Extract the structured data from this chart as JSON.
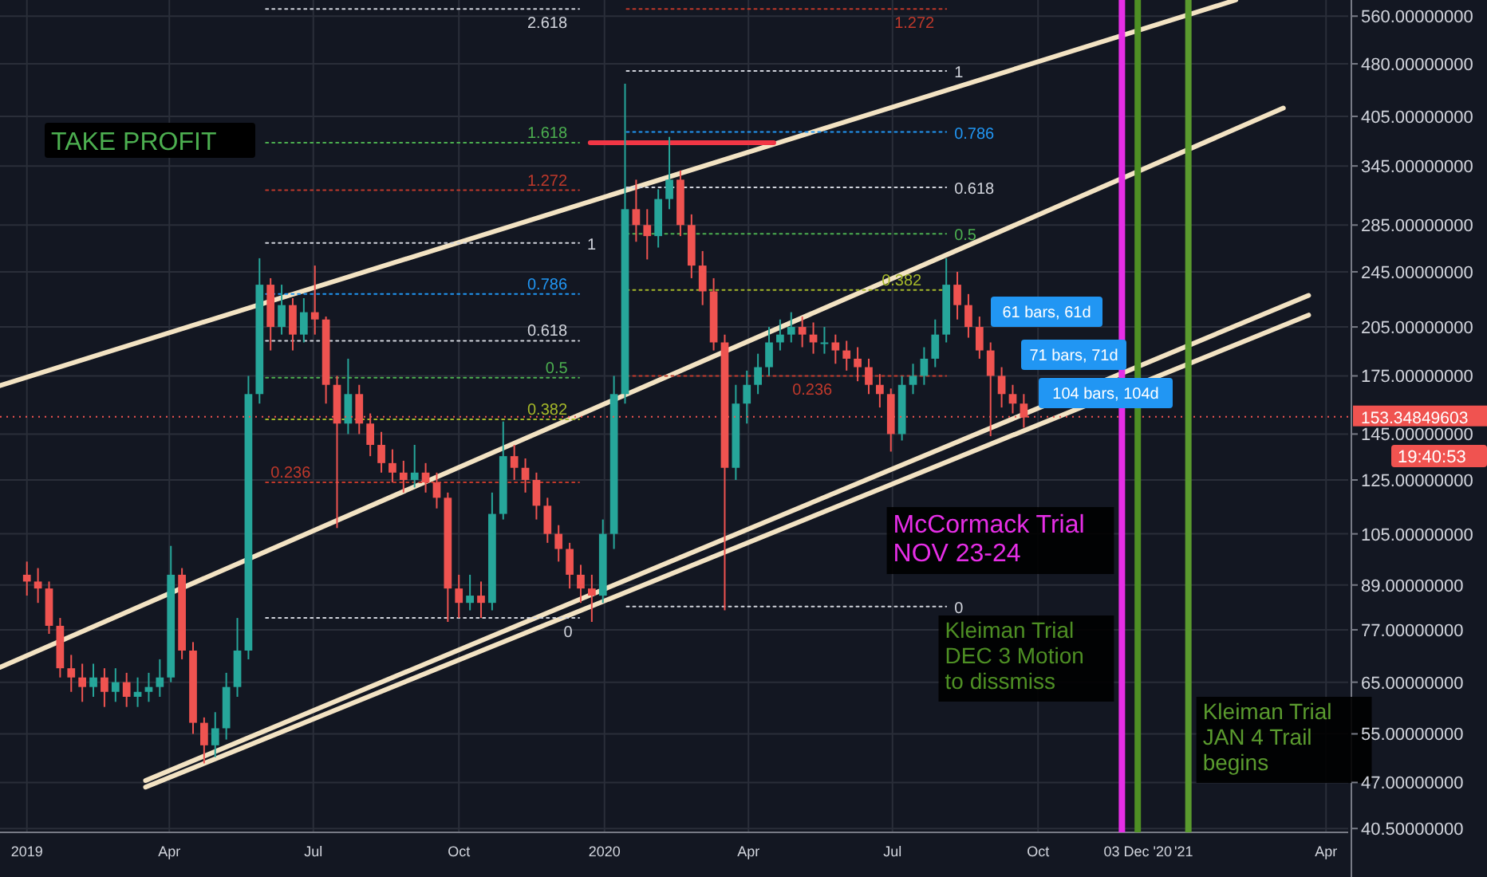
{
  "chart_data": {
    "type": "candlestick",
    "x": [
      "2019-01-01",
      "2019-01-08",
      "2019-01-15",
      "2019-01-22",
      "2019-01-29",
      "2019-02-05",
      "2019-02-12",
      "2019-02-19",
      "2019-02-26",
      "2019-03-05",
      "2019-03-12",
      "2019-03-19",
      "2019-03-26",
      "2019-04-02",
      "2019-04-09",
      "2019-04-16",
      "2019-04-23",
      "2019-04-30",
      "2019-05-07",
      "2019-05-14",
      "2019-05-21",
      "2019-05-28",
      "2019-06-04",
      "2019-06-11",
      "2019-06-18",
      "2019-06-25",
      "2019-07-02",
      "2019-07-09",
      "2019-07-16",
      "2019-07-23",
      "2019-07-30",
      "2019-08-06",
      "2019-08-13",
      "2019-08-20",
      "2019-08-27",
      "2019-09-03",
      "2019-09-10",
      "2019-09-17",
      "2019-09-24",
      "2019-10-01",
      "2019-10-08",
      "2019-10-15",
      "2019-10-22",
      "2019-10-29",
      "2019-11-05",
      "2019-11-12",
      "2019-11-19",
      "2019-11-26",
      "2019-12-03",
      "2019-12-10",
      "2019-12-17",
      "2019-12-24",
      "2019-12-31",
      "2020-01-07",
      "2020-01-14",
      "2020-01-21",
      "2020-01-28",
      "2020-02-04",
      "2020-02-11",
      "2020-02-18",
      "2020-02-25",
      "2020-03-03",
      "2020-03-10",
      "2020-03-17",
      "2020-03-24",
      "2020-03-31",
      "2020-04-07",
      "2020-04-14",
      "2020-04-21",
      "2020-04-28",
      "2020-05-05",
      "2020-05-12",
      "2020-05-19",
      "2020-05-26",
      "2020-06-02",
      "2020-06-09",
      "2020-06-16",
      "2020-06-23",
      "2020-06-30",
      "2020-07-07",
      "2020-07-14",
      "2020-07-21",
      "2020-07-28",
      "2020-08-04",
      "2020-08-11",
      "2020-08-18",
      "2020-08-25",
      "2020-09-01",
      "2020-09-08",
      "2020-09-15",
      "2020-09-22"
    ],
    "ohlc": [
      [
        92,
        96,
        86,
        90
      ],
      [
        90,
        94,
        84,
        88
      ],
      [
        88,
        90,
        76,
        78
      ],
      [
        78,
        80,
        66,
        68
      ],
      [
        68,
        71,
        63,
        66
      ],
      [
        66,
        69,
        61,
        64
      ],
      [
        64,
        69,
        62,
        66
      ],
      [
        66,
        68,
        60,
        63
      ],
      [
        63,
        68,
        61,
        65
      ],
      [
        65,
        67,
        60,
        62
      ],
      [
        62,
        66,
        60,
        63
      ],
      [
        63,
        67,
        61,
        64
      ],
      [
        64,
        70,
        62,
        66
      ],
      [
        66,
        101,
        65,
        92
      ],
      [
        92,
        94,
        70,
        72
      ],
      [
        72,
        74,
        55,
        57
      ],
      [
        57,
        58,
        50,
        53
      ],
      [
        53,
        59,
        51,
        56
      ],
      [
        56,
        67,
        54,
        64
      ],
      [
        64,
        80,
        62,
        72
      ],
      [
        72,
        175,
        70,
        165
      ],
      [
        165,
        256,
        160,
        235
      ],
      [
        235,
        240,
        190,
        205
      ],
      [
        205,
        235,
        200,
        220
      ],
      [
        220,
        225,
        190,
        200
      ],
      [
        200,
        225,
        195,
        215
      ],
      [
        215,
        250,
        200,
        210
      ],
      [
        210,
        212,
        160,
        170
      ],
      [
        170,
        175,
        107,
        150
      ],
      [
        150,
        185,
        145,
        165
      ],
      [
        165,
        170,
        145,
        150
      ],
      [
        150,
        155,
        135,
        140
      ],
      [
        140,
        146,
        128,
        132
      ],
      [
        132,
        138,
        124,
        128
      ],
      [
        128,
        133,
        120,
        125
      ],
      [
        125,
        140,
        122,
        128
      ],
      [
        128,
        132,
        120,
        124
      ],
      [
        124,
        128,
        114,
        118
      ],
      [
        118,
        120,
        79,
        88
      ],
      [
        88,
        92,
        80,
        84
      ],
      [
        84,
        92,
        82,
        86
      ],
      [
        86,
        90,
        80,
        84
      ],
      [
        84,
        120,
        82,
        112
      ],
      [
        112,
        151,
        110,
        135
      ],
      [
        135,
        140,
        125,
        130
      ],
      [
        130,
        134,
        120,
        125
      ],
      [
        125,
        128,
        110,
        115
      ],
      [
        115,
        118,
        102,
        105
      ],
      [
        105,
        108,
        96,
        100
      ],
      [
        100,
        102,
        88,
        92
      ],
      [
        92,
        95,
        84,
        88
      ],
      [
        88,
        92,
        79,
        86
      ],
      [
        86,
        110,
        84,
        105
      ],
      [
        105,
        175,
        100,
        165
      ],
      [
        165,
        450,
        160,
        300
      ],
      [
        300,
        330,
        270,
        285
      ],
      [
        285,
        300,
        255,
        275
      ],
      [
        275,
        320,
        265,
        310
      ],
      [
        310,
        379,
        300,
        330
      ],
      [
        330,
        340,
        275,
        285
      ],
      [
        285,
        295,
        240,
        250
      ],
      [
        250,
        262,
        220,
        230
      ],
      [
        230,
        240,
        190,
        195
      ],
      [
        195,
        200,
        82,
        130
      ],
      [
        130,
        170,
        125,
        160
      ],
      [
        160,
        178,
        150,
        170
      ],
      [
        170,
        188,
        165,
        180
      ],
      [
        180,
        205,
        175,
        195
      ],
      [
        195,
        210,
        190,
        200
      ],
      [
        200,
        215,
        195,
        205
      ],
      [
        205,
        212,
        192,
        200
      ],
      [
        200,
        208,
        188,
        195
      ],
      [
        195,
        205,
        188,
        195
      ],
      [
        195,
        200,
        182,
        190
      ],
      [
        190,
        196,
        178,
        185
      ],
      [
        185,
        192,
        172,
        180
      ],
      [
        180,
        185,
        165,
        170
      ],
      [
        170,
        176,
        158,
        165
      ],
      [
        165,
        168,
        137,
        145
      ],
      [
        145,
        175,
        142,
        170
      ],
      [
        170,
        182,
        165,
        175
      ],
      [
        175,
        192,
        170,
        185
      ],
      [
        185,
        210,
        180,
        200
      ],
      [
        200,
        256,
        195,
        235
      ],
      [
        235,
        245,
        210,
        220
      ],
      [
        220,
        228,
        198,
        205
      ],
      [
        205,
        212,
        185,
        190
      ],
      [
        190,
        195,
        144,
        175
      ],
      [
        175,
        180,
        158,
        165
      ],
      [
        165,
        170,
        155,
        160
      ],
      [
        160,
        165,
        148,
        153
      ]
    ],
    "series": [
      {
        "type": "line",
        "color": "#f3e3c3",
        "x": [
          "2018-12-15",
          "2021-02-03"
        ],
        "values": [
          169.6,
          590
        ]
      },
      {
        "type": "line",
        "color": "#f3e3c3",
        "x": [
          "2018-12-15",
          "2021-03-05"
        ],
        "values": [
          68.2,
          416
        ]
      },
      {
        "type": "line",
        "color": "#f3e3c3",
        "x": [
          "2019-03-17",
          "2021-03-21"
        ],
        "values": [
          47.3,
          227
        ]
      },
      {
        "type": "line",
        "color": "#f3e3c3",
        "x": [
          "2019-03-17",
          "2021-03-21"
        ],
        "values": [
          46.3,
          213
        ]
      },
      {
        "type": "line",
        "color": "#f23645",
        "x": [
          "2019-12-23",
          "2020-04-17"
        ],
        "values": [
          372,
          372
        ]
      },
      {
        "type": "line",
        "name": "2.618",
        "color": "#d1d4dc",
        "line_style": "dotted",
        "x": [
          "2019-06-01",
          "2019-12-16"
        ],
        "values": [
          573,
          573
        ]
      },
      {
        "type": "line",
        "name": "1.618",
        "color": "#4caf50",
        "line_style": "dotted",
        "x": [
          "2019-06-01",
          "2019-12-16"
        ],
        "values": [
          372,
          372
        ]
      },
      {
        "type": "line",
        "name": "1.272",
        "color": "#c0392b",
        "line_style": "dotted",
        "x": [
          "2019-06-01",
          "2019-12-16"
        ],
        "values": [
          319,
          319
        ]
      },
      {
        "type": "line",
        "name": "1",
        "color": "#d1d4dc",
        "line_style": "dotted",
        "x": [
          "2019-06-01",
          "2019-12-16"
        ],
        "values": [
          269,
          269
        ]
      },
      {
        "type": "line",
        "name": "0.786",
        "color": "#2196f3",
        "line_style": "dotted",
        "x": [
          "2019-06-01",
          "2019-12-16"
        ],
        "values": [
          228,
          228
        ]
      },
      {
        "type": "line",
        "name": "0.618",
        "color": "#d1d4dc",
        "line_style": "dotted",
        "x": [
          "2019-06-01",
          "2019-12-16"
        ],
        "values": [
          196,
          196
        ]
      },
      {
        "type": "line",
        "name": "0.5",
        "color": "#4caf50",
        "line_style": "dotted",
        "x": [
          "2019-06-01",
          "2019-12-16"
        ],
        "values": [
          174,
          174
        ]
      },
      {
        "type": "line",
        "name": "0.382",
        "color": "#a5b82a",
        "line_style": "dotted",
        "x": [
          "2019-06-01",
          "2019-12-16"
        ],
        "values": [
          152,
          152
        ]
      },
      {
        "type": "line",
        "name": "0.236",
        "color": "#c0392b",
        "line_style": "dotted",
        "x": [
          "2019-06-01",
          "2019-12-16"
        ],
        "values": [
          124,
          124
        ]
      },
      {
        "type": "line",
        "name": "0",
        "color": "#d1d4dc",
        "line_style": "dotted",
        "x": [
          "2019-06-01",
          "2019-12-16"
        ],
        "values": [
          80,
          80
        ]
      },
      {
        "type": "line",
        "name": "1.272",
        "color": "#c0392b",
        "line_style": "dotted",
        "x": [
          "2020-01-15",
          "2020-08-04"
        ],
        "values": [
          573,
          573
        ]
      },
      {
        "type": "line",
        "name": "1",
        "color": "#d1d4dc",
        "line_style": "dotted",
        "x": [
          "2020-01-15",
          "2020-08-04"
        ],
        "values": [
          469,
          469
        ]
      },
      {
        "type": "line",
        "name": "0.786",
        "color": "#2196f3",
        "line_style": "dotted",
        "x": [
          "2020-01-15",
          "2020-08-04"
        ],
        "values": [
          385,
          385
        ]
      },
      {
        "type": "line",
        "name": "0.618",
        "color": "#d1d4dc",
        "line_style": "dotted",
        "x": [
          "2020-01-15",
          "2020-08-04"
        ],
        "values": [
          322,
          322
        ]
      },
      {
        "type": "line",
        "name": "0.5",
        "color": "#4caf50",
        "line_style": "dotted",
        "x": [
          "2020-01-15",
          "2020-08-04"
        ],
        "values": [
          277,
          277
        ]
      },
      {
        "type": "line",
        "name": "0.382",
        "color": "#a5b82a",
        "line_style": "dotted",
        "x": [
          "2020-01-15",
          "2020-08-04"
        ],
        "values": [
          231,
          231
        ]
      },
      {
        "type": "line",
        "name": "0.236",
        "color": "#c0392b",
        "line_style": "dotted",
        "x": [
          "2020-01-15",
          "2020-08-04"
        ],
        "values": [
          175,
          175
        ]
      },
      {
        "type": "line",
        "name": "0",
        "color": "#d1d4dc",
        "line_style": "dotted",
        "x": [
          "2020-01-15",
          "2020-08-04"
        ],
        "values": [
          83,
          83
        ]
      }
    ],
    "xlim": [
      "2018-12-15",
      "2021-04-15"
    ],
    "ylim": [
      40,
      590
    ],
    "log": "y",
    "grid": true,
    "xticks": [
      {
        "value": "2019-01-01",
        "label": "2019"
      },
      {
        "value": "2019-04-01",
        "label": "Apr"
      },
      {
        "value": "2019-07-01",
        "label": "Jul"
      },
      {
        "value": "2019-10-01",
        "label": "Oct"
      },
      {
        "value": "2020-01-01",
        "label": "2020"
      },
      {
        "value": "2020-04-01",
        "label": "Apr"
      },
      {
        "value": "2020-07-01",
        "label": "Jul"
      },
      {
        "value": "2020-10-01",
        "label": "Oct"
      },
      {
        "value": "2020-12-03",
        "label": "03 Dec '20"
      },
      {
        "value": "2021-01-01",
        "label": "'21"
      },
      {
        "value": "2021-04-01",
        "label": "Apr"
      }
    ],
    "yticks": [
      {
        "value": 40.5,
        "label": "40.50000000"
      },
      {
        "value": 47,
        "label": "47.00000000"
      },
      {
        "value": 55,
        "label": "55.00000000"
      },
      {
        "value": 65,
        "label": "65.00000000"
      },
      {
        "value": 77,
        "label": "77.00000000"
      },
      {
        "value": 89,
        "label": "89.00000000"
      },
      {
        "value": 105,
        "label": "105.00000000"
      },
      {
        "value": 125,
        "label": "125.00000000"
      },
      {
        "value": 145,
        "label": "145.00000000"
      },
      {
        "value": 175,
        "label": "175.00000000"
      },
      {
        "value": 205,
        "label": "205.00000000"
      },
      {
        "value": 245,
        "label": "245.00000000"
      },
      {
        "value": 285,
        "label": "285.00000000"
      },
      {
        "value": 345,
        "label": "345.00000000"
      },
      {
        "value": 405,
        "label": "405.00000000"
      },
      {
        "value": 480,
        "label": "480.00000000"
      },
      {
        "value": 560,
        "label": "560.00000000"
      }
    ],
    "ref_lines": [
      {
        "axis": "y",
        "value": 153.34849603,
        "label": "153.34849603",
        "color": "#f05350",
        "line_style": "dotted"
      },
      {
        "axis": "x",
        "value": "2020-11-23",
        "label": "McCormack Trial\nNOV 23-24",
        "color": "#e62ee6"
      },
      {
        "axis": "x",
        "value": "2020-12-03",
        "label": "Kleiman Trial\nDEC 3 Motion\nto dissmiss",
        "color": "#4e8f24"
      },
      {
        "axis": "x",
        "value": "2021-01-04",
        "label": "Kleiman Trial\nJAN 4 Trail\nbegins",
        "color": "#5a9a2e"
      }
    ],
    "annotations": [
      "TAKE PROFIT",
      "19:40:53",
      "61 bars, 61d",
      "71 bars, 71d",
      "104 bars, 104d"
    ]
  }
}
